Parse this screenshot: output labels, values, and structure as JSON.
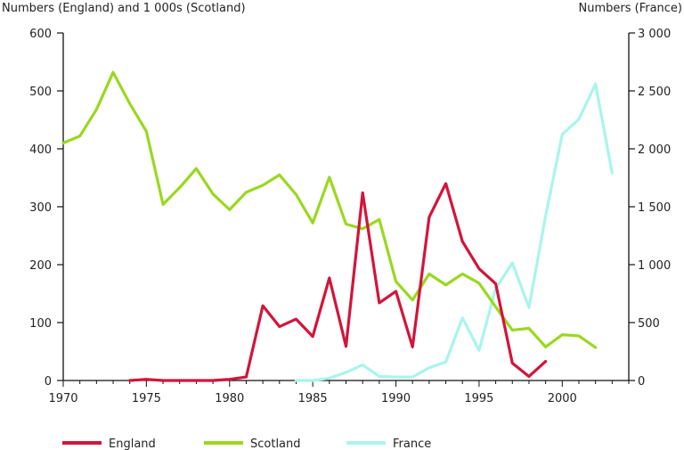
{
  "chart_data": {
    "type": "line",
    "y_left_label": "Numbers (England) and 1 000s (Scotland)",
    "y_right_label": "Numbers (France)",
    "xlim": [
      1970,
      2004
    ],
    "x_ticks": [
      1970,
      1975,
      1980,
      1985,
      1990,
      1995,
      2000
    ],
    "ylim_left": [
      0,
      600
    ],
    "y_left_ticks": [
      0,
      100,
      200,
      300,
      400,
      500,
      600
    ],
    "ylim_right": [
      0,
      3000
    ],
    "y_right_ticks": [
      {
        "value": 0,
        "label": "0"
      },
      {
        "value": 500,
        "label": "500"
      },
      {
        "value": 1000,
        "label": "1 000"
      },
      {
        "value": 1500,
        "label": "1 500"
      },
      {
        "value": 2000,
        "label": "2 000"
      },
      {
        "value": 2500,
        "label": "2 500"
      },
      {
        "value": 3000,
        "label": "3 000"
      }
    ],
    "grid": false,
    "legend_position": "bottom",
    "series": [
      {
        "name": "England",
        "axis": "left",
        "color": "#d3143a",
        "x": [
          1974,
          1975,
          1976,
          1977,
          1978,
          1979,
          1980,
          1981,
          1982,
          1983,
          1984,
          1985,
          1986,
          1987,
          1988,
          1989,
          1990,
          1991,
          1992,
          1993,
          1994,
          1995,
          1996,
          1997,
          1998,
          1999
        ],
        "y": [
          0,
          2,
          0,
          0,
          0,
          0,
          2,
          6,
          129,
          93,
          106,
          76,
          177,
          59,
          324,
          134,
          154,
          58,
          282,
          340,
          240,
          193,
          167,
          30,
          7,
          33
        ]
      },
      {
        "name": "Scotland",
        "axis": "left",
        "color": "#9ad81f",
        "x": [
          1970,
          1971,
          1972,
          1973,
          1974,
          1975,
          1976,
          1977,
          1978,
          1979,
          1980,
          1981,
          1982,
          1983,
          1984,
          1985,
          1986,
          1987,
          1988,
          1989,
          1990,
          1991,
          1992,
          1993,
          1994,
          1995,
          1996,
          1997,
          1998,
          1999,
          2000,
          2001,
          2002
        ],
        "y": [
          410,
          422,
          468,
          532,
          478,
          430,
          304,
          333,
          366,
          322,
          295,
          325,
          337,
          355,
          321,
          272,
          351,
          270,
          262,
          278,
          171,
          139,
          184,
          165,
          184,
          168,
          127,
          87,
          90,
          58,
          79,
          77,
          57
        ]
      },
      {
        "name": "France",
        "axis": "right",
        "color": "#a8f5ec",
        "x": [
          1984,
          1985,
          1986,
          1987,
          1988,
          1989,
          1990,
          1991,
          1992,
          1993,
          1994,
          1995,
          1996,
          1997,
          1998,
          1999,
          2000,
          2001,
          2002,
          2003
        ],
        "y": [
          0,
          0,
          20,
          70,
          135,
          35,
          30,
          30,
          110,
          160,
          540,
          260,
          795,
          1015,
          630,
          1420,
          2125,
          2255,
          2560,
          1790
        ]
      }
    ]
  }
}
